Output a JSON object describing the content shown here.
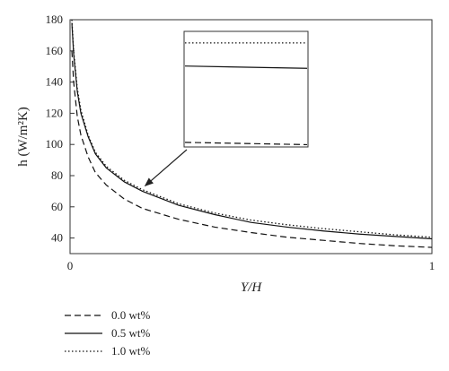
{
  "chart_data": {
    "type": "line",
    "xlabel": "Y/H",
    "ylabel": "h (W/m²K)",
    "xlim": [
      0,
      1
    ],
    "ylim": [
      30,
      180
    ],
    "x_ticks": [
      0,
      1
    ],
    "y_ticks": [
      40,
      60,
      80,
      100,
      120,
      140,
      160,
      180
    ],
    "grid": false,
    "legend_position": "below",
    "x": [
      0.005,
      0.01,
      0.02,
      0.03,
      0.05,
      0.07,
      0.1,
      0.15,
      0.2,
      0.3,
      0.4,
      0.5,
      0.6,
      0.7,
      0.8,
      0.9,
      1.0
    ],
    "series": [
      {
        "name": "0.0 wt%",
        "style": "dashed",
        "values": [
          160,
          140,
          118,
          106,
          92,
          82,
          74,
          65,
          59,
          52,
          47,
          43.5,
          40.5,
          38.5,
          36.5,
          35,
          34
        ]
      },
      {
        "name": "0.5 wt%",
        "style": "solid",
        "values": [
          178,
          158,
          134,
          120,
          105,
          94,
          85,
          76,
          70,
          61,
          55,
          50,
          47,
          44.5,
          42.5,
          41,
          39.5
        ]
      },
      {
        "name": "1.0 wt%",
        "style": "dotted",
        "values": [
          180,
          160,
          136,
          122,
          106,
          95,
          86,
          77,
          71,
          62,
          56,
          51.5,
          48.5,
          46,
          44,
          42,
          40.5
        ]
      }
    ],
    "inset": {
      "series_levels": [
        {
          "name": "1.0 wt%",
          "style": "dotted",
          "start": 0.9,
          "end": 0.9
        },
        {
          "name": "0.5 wt%",
          "style": "solid",
          "start": 0.7,
          "end": 0.68
        },
        {
          "name": "0.0 wt%",
          "style": "dashed",
          "start": 0.04,
          "end": 0.02
        }
      ],
      "points_to_x": 0.2
    }
  },
  "colors": {
    "axis": "#333333",
    "line": "#111111"
  }
}
